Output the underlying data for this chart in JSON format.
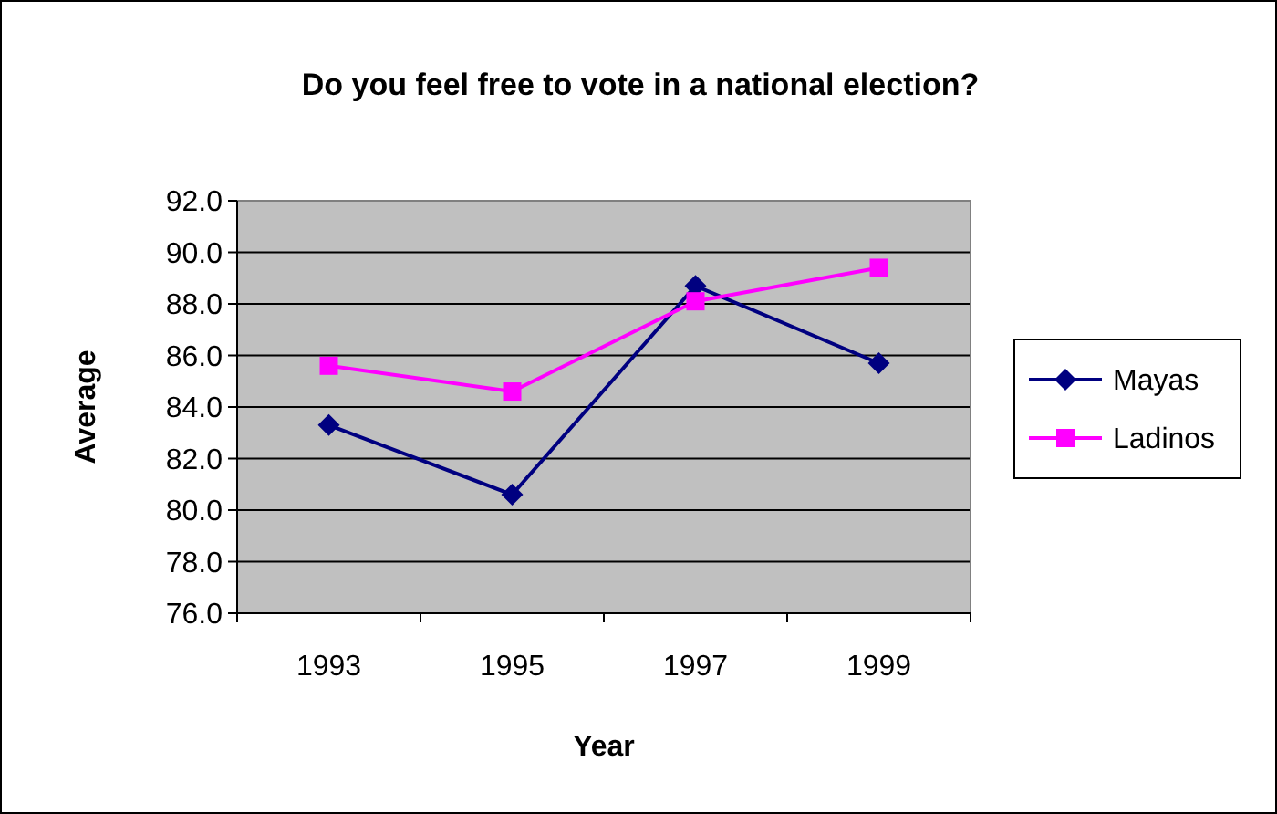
{
  "chart_data": {
    "type": "line",
    "title": "Do you feel free to vote in a national election?",
    "xlabel": "Year",
    "ylabel": "Average",
    "categories": [
      "1993",
      "1995",
      "1997",
      "1999"
    ],
    "series": [
      {
        "name": "Mayas",
        "color": "#000080",
        "marker": "diamond",
        "values": [
          83.3,
          80.6,
          88.7,
          85.7
        ]
      },
      {
        "name": "Ladinos",
        "color": "#ff00ff",
        "marker": "square",
        "values": [
          85.6,
          84.6,
          88.1,
          89.4
        ]
      }
    ],
    "ylim": [
      76,
      92
    ],
    "yticks": [
      {
        "value": 76,
        "label": "76.0"
      },
      {
        "value": 78,
        "label": "78.0"
      },
      {
        "value": 80,
        "label": "80.0"
      },
      {
        "value": 82,
        "label": "82.0"
      },
      {
        "value": 84,
        "label": "84.0"
      },
      {
        "value": 86,
        "label": "86.0"
      },
      {
        "value": 88,
        "label": "88.0"
      },
      {
        "value": 90,
        "label": "90.0"
      },
      {
        "value": 92,
        "label": "92.0"
      }
    ],
    "grid": "y",
    "legend": "right"
  }
}
